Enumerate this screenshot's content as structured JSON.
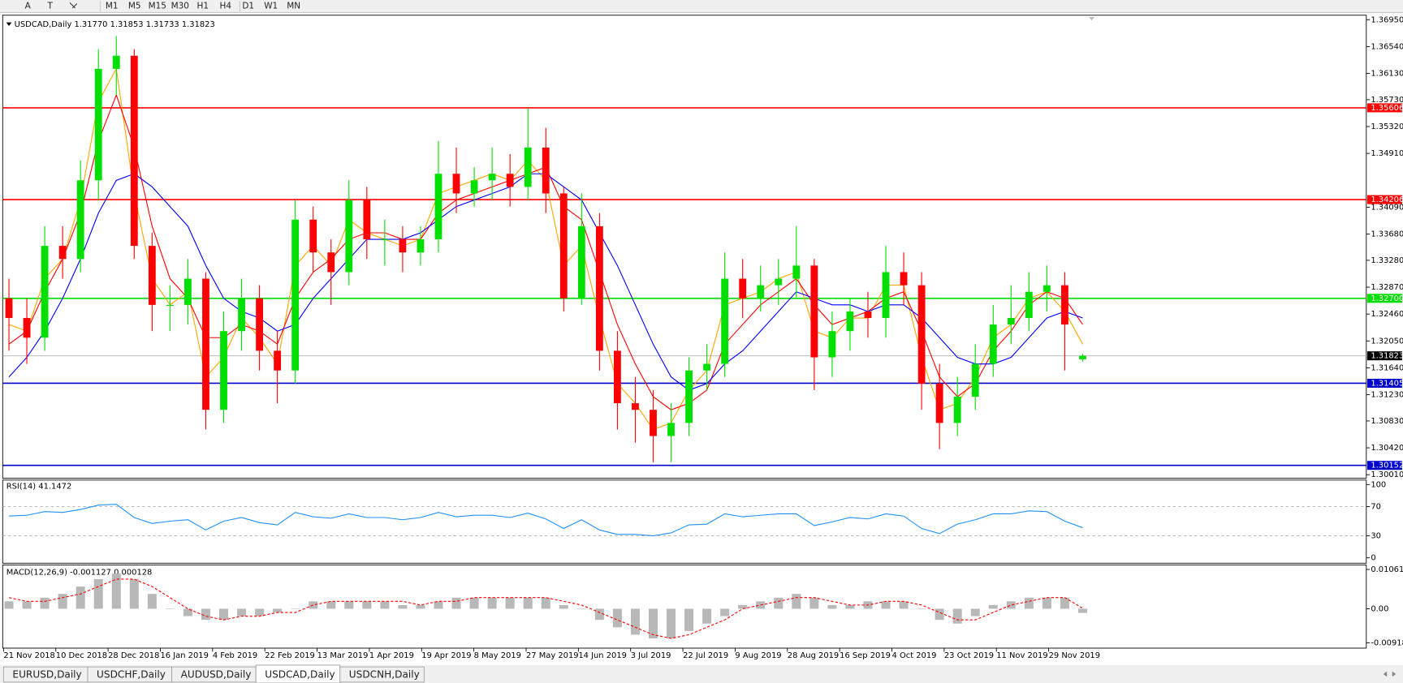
{
  "toolbar": {
    "tools": [
      "A",
      "T"
    ],
    "timeframes": [
      "M1",
      "M5",
      "M15",
      "M30",
      "H1",
      "H4",
      "D1",
      "W1",
      "MN"
    ]
  },
  "chart_data": {
    "type": "candlestick",
    "title": "USDCAD,Daily  1.31770 1.31853 1.31733 1.31823",
    "ylim": [
      1.3001,
      1.3695
    ],
    "yticks": [
      {
        "value": 1.3695,
        "label": "1.36950"
      },
      {
        "value": 1.3654,
        "label": "1.36540"
      },
      {
        "value": 1.3613,
        "label": "1.36130"
      },
      {
        "value": 1.3573,
        "label": "1.35730"
      },
      {
        "value": 1.3532,
        "label": "1.35320"
      },
      {
        "value": 1.3491,
        "label": "1.34910"
      },
      {
        "value": 1.3409,
        "label": "1.34090"
      },
      {
        "value": 1.3368,
        "label": "1.33680"
      },
      {
        "value": 1.3328,
        "label": "1.33280"
      },
      {
        "value": 1.3287,
        "label": "1.32870"
      },
      {
        "value": 1.3246,
        "label": "1.32460"
      },
      {
        "value": 1.3205,
        "label": "1.32050"
      },
      {
        "value": 1.3164,
        "label": "1.31640"
      },
      {
        "value": 1.3123,
        "label": "1.31230"
      },
      {
        "value": 1.3083,
        "label": "1.30830"
      },
      {
        "value": 1.3042,
        "label": "1.30420"
      },
      {
        "value": 1.3001,
        "label": "1.30010"
      }
    ],
    "levels": [
      {
        "value": 1.35606,
        "color": "#ff0000"
      },
      {
        "value": 1.34206,
        "color": "#ff0000"
      },
      {
        "value": 1.327,
        "label": "1.32700",
        "color": "#00e000"
      },
      {
        "value": 1.31405,
        "color": "#0000cc"
      },
      {
        "value": 1.30152,
        "color": "#0000cc"
      },
      {
        "value": 1.31823,
        "color": "#b0b0b0",
        "label_color": "#000000"
      }
    ],
    "up_color": "#00e000",
    "down_color": "#ff0000",
    "open": [
      1.327,
      1.324,
      1.321,
      1.335,
      1.333,
      1.345,
      1.362,
      1.364,
      1.335,
      1.326,
      1.326,
      1.33,
      1.31,
      1.322,
      1.327,
      1.319,
      1.316,
      1.339,
      1.334,
      1.331,
      1.342,
      1.336,
      1.336,
      1.334,
      1.336,
      1.346,
      1.343,
      1.345,
      1.346,
      1.344,
      1.35,
      1.343,
      1.327,
      1.338,
      1.319,
      1.311,
      1.31,
      1.306,
      1.308,
      1.316,
      1.317,
      1.33,
      1.327,
      1.329,
      1.33,
      1.332,
      1.318,
      1.322,
      1.325,
      1.324,
      1.331,
      1.329,
      1.314,
      1.308,
      1.312,
      1.317,
      1.323,
      1.324,
      1.328,
      1.329,
      1.3177
    ],
    "high": [
      1.33,
      1.327,
      1.338,
      1.338,
      1.348,
      1.365,
      1.367,
      1.365,
      1.337,
      1.329,
      1.333,
      1.331,
      1.325,
      1.33,
      1.329,
      1.322,
      1.342,
      1.341,
      1.336,
      1.345,
      1.344,
      1.339,
      1.338,
      1.338,
      1.351,
      1.35,
      1.347,
      1.35,
      1.349,
      1.356,
      1.353,
      1.344,
      1.343,
      1.34,
      1.322,
      1.315,
      1.313,
      1.311,
      1.318,
      1.32,
      1.334,
      1.333,
      1.332,
      1.333,
      1.338,
      1.333,
      1.325,
      1.327,
      1.328,
      1.335,
      1.334,
      1.331,
      1.317,
      1.315,
      1.32,
      1.326,
      1.329,
      1.331,
      1.332,
      1.331,
      1.31853
    ],
    "low": [
      1.319,
      1.317,
      1.319,
      1.33,
      1.331,
      1.342,
      1.358,
      1.333,
      1.322,
      1.322,
      1.323,
      1.307,
      1.308,
      1.319,
      1.316,
      1.311,
      1.314,
      1.331,
      1.326,
      1.329,
      1.333,
      1.332,
      1.331,
      1.332,
      1.334,
      1.34,
      1.341,
      1.342,
      1.341,
      1.342,
      1.34,
      1.325,
      1.326,
      1.316,
      1.307,
      1.305,
      1.302,
      1.302,
      1.306,
      1.313,
      1.315,
      1.324,
      1.325,
      1.326,
      1.327,
      1.313,
      1.315,
      1.319,
      1.321,
      1.321,
      1.326,
      1.31,
      1.304,
      1.306,
      1.31,
      1.315,
      1.32,
      1.322,
      1.325,
      1.316,
      1.31733
    ],
    "close": [
      1.324,
      1.321,
      1.335,
      1.333,
      1.345,
      1.362,
      1.364,
      1.335,
      1.326,
      1.326,
      1.33,
      1.31,
      1.322,
      1.327,
      1.319,
      1.316,
      1.339,
      1.334,
      1.331,
      1.342,
      1.336,
      1.336,
      1.334,
      1.336,
      1.346,
      1.343,
      1.345,
      1.346,
      1.344,
      1.35,
      1.343,
      1.327,
      1.338,
      1.319,
      1.311,
      1.31,
      1.306,
      1.308,
      1.316,
      1.317,
      1.33,
      1.327,
      1.329,
      1.33,
      1.332,
      1.318,
      1.322,
      1.325,
      1.324,
      1.331,
      1.329,
      1.314,
      1.308,
      1.312,
      1.317,
      1.323,
      1.324,
      1.328,
      1.329,
      1.323,
      1.31823
    ],
    "moving_averages": [
      {
        "color": "#ffa500",
        "values": [
          1.323,
          1.322,
          1.33,
          1.333,
          1.342,
          1.357,
          1.362,
          1.343,
          1.33,
          1.326,
          1.328,
          1.315,
          1.318,
          1.324,
          1.321,
          1.317,
          1.332,
          1.335,
          1.332,
          1.339,
          1.337,
          1.336,
          1.335,
          1.336,
          1.343,
          1.344,
          1.345,
          1.346,
          1.345,
          1.348,
          1.345,
          1.332,
          1.335,
          1.324,
          1.314,
          1.311,
          1.307,
          1.308,
          1.313,
          1.316,
          1.326,
          1.327,
          1.328,
          1.33,
          1.331,
          1.322,
          1.321,
          1.324,
          1.324,
          1.329,
          1.329,
          1.318,
          1.31,
          1.311,
          1.315,
          1.321,
          1.323,
          1.327,
          1.328,
          1.325,
          1.32
        ]
      },
      {
        "color": "#ff0000",
        "values": [
          1.32,
          1.322,
          1.328,
          1.333,
          1.34,
          1.351,
          1.358,
          1.35,
          1.338,
          1.33,
          1.327,
          1.321,
          1.321,
          1.323,
          1.322,
          1.32,
          1.327,
          1.331,
          1.333,
          1.336,
          1.337,
          1.337,
          1.336,
          1.336,
          1.34,
          1.342,
          1.343,
          1.344,
          1.345,
          1.346,
          1.347,
          1.341,
          1.339,
          1.331,
          1.323,
          1.317,
          1.312,
          1.31,
          1.311,
          1.313,
          1.32,
          1.323,
          1.326,
          1.328,
          1.33,
          1.326,
          1.323,
          1.324,
          1.325,
          1.327,
          1.328,
          1.322,
          1.315,
          1.312,
          1.314,
          1.319,
          1.322,
          1.326,
          1.328,
          1.327,
          1.323
        ]
      },
      {
        "color": "#0000ff",
        "values": [
          1.315,
          1.318,
          1.322,
          1.327,
          1.333,
          1.34,
          1.345,
          1.346,
          1.344,
          1.341,
          1.338,
          1.332,
          1.327,
          1.325,
          1.324,
          1.322,
          1.323,
          1.327,
          1.33,
          1.333,
          1.336,
          1.336,
          1.336,
          1.337,
          1.339,
          1.341,
          1.342,
          1.343,
          1.344,
          1.346,
          1.346,
          1.344,
          1.342,
          1.337,
          1.332,
          1.326,
          1.32,
          1.315,
          1.313,
          1.314,
          1.317,
          1.319,
          1.322,
          1.325,
          1.328,
          1.327,
          1.326,
          1.326,
          1.325,
          1.326,
          1.326,
          1.324,
          1.321,
          1.318,
          1.317,
          1.317,
          1.318,
          1.321,
          1.324,
          1.325,
          1.324
        ]
      }
    ],
    "x_labels": [
      "21 Nov 2018",
      "10 Dec 2018",
      "28 Dec 2018",
      "16 Jan 2019",
      "4 Feb 2019",
      "22 Feb 2019",
      "13 Mar 2019",
      "1 Apr 2019",
      "19 Apr 2019",
      "8 May 2019",
      "27 May 2019",
      "14 Jun 2019",
      "3 Jul 2019",
      "22 Jul 2019",
      "9 Aug 2019",
      "28 Aug 2019",
      "16 Sep 2019",
      "4 Oct 2019",
      "23 Oct 2019",
      "11 Nov 2019",
      "29 Nov 2019"
    ],
    "rsi": {
      "title": "RSI(14) 41.1472",
      "color": "#1e90ff",
      "ylim": [
        0,
        100
      ],
      "yticks": [
        100,
        70,
        30,
        0
      ],
      "levels": [
        70,
        30
      ],
      "values": [
        57,
        58,
        63,
        62,
        66,
        72,
        73,
        55,
        47,
        50,
        52,
        38,
        50,
        55,
        48,
        45,
        62,
        56,
        54,
        60,
        55,
        55,
        52,
        55,
        62,
        56,
        58,
        58,
        55,
        61,
        53,
        40,
        52,
        38,
        32,
        32,
        30,
        34,
        45,
        46,
        60,
        56,
        58,
        60,
        60,
        44,
        49,
        55,
        53,
        60,
        57,
        40,
        33,
        46,
        52,
        60,
        60,
        64,
        63,
        50,
        41.1472
      ]
    },
    "macd": {
      "title": "MACD(12,26,9) -0.001127 0.000128",
      "histogram_color": "#b8b8b8",
      "signal_color": "#ff0000",
      "ylim": [
        -0.009181,
        0.010615
      ],
      "yticks": [
        0.010615,
        {
          "value": 0,
          "label": "0.00"
        },
        -0.009181
      ],
      "values": [
        0.002,
        0.002,
        0.003,
        0.004,
        0.006,
        0.008,
        0.0095,
        0.008,
        0.004,
        0.0,
        -0.002,
        -0.003,
        -0.003,
        -0.002,
        -0.002,
        -0.001,
        0.0,
        0.002,
        0.002,
        0.002,
        0.002,
        0.002,
        0.001,
        0.001,
        0.002,
        0.003,
        0.003,
        0.003,
        0.003,
        0.003,
        0.003,
        0.001,
        0.0,
        -0.003,
        -0.005,
        -0.007,
        -0.008,
        -0.008,
        -0.006,
        -0.004,
        -0.002,
        0.001,
        0.002,
        0.003,
        0.004,
        0.003,
        0.001,
        0.001,
        0.002,
        0.002,
        0.002,
        0.0,
        -0.003,
        -0.004,
        -0.002,
        0.001,
        0.002,
        0.003,
        0.003,
        0.003,
        -0.001127
      ],
      "signal": [
        0.003,
        0.002,
        0.002,
        0.003,
        0.004,
        0.006,
        0.008,
        0.008,
        0.006,
        0.003,
        0.0,
        -0.002,
        -0.003,
        -0.002,
        -0.002,
        -0.001,
        -0.001,
        0.001,
        0.002,
        0.002,
        0.002,
        0.002,
        0.002,
        0.001,
        0.002,
        0.002,
        0.003,
        0.003,
        0.003,
        0.003,
        0.003,
        0.002,
        0.001,
        -0.001,
        -0.003,
        -0.005,
        -0.007,
        -0.008,
        -0.007,
        -0.005,
        -0.003,
        0.0,
        0.001,
        0.002,
        0.003,
        0.003,
        0.002,
        0.001,
        0.001,
        0.002,
        0.002,
        0.001,
        -0.001,
        -0.003,
        -0.003,
        -0.001,
        0.001,
        0.002,
        0.003,
        0.003,
        0.000128
      ]
    }
  },
  "tabs": [
    {
      "label": "EURUSD,Daily",
      "active": false
    },
    {
      "label": "USDCHF,Daily",
      "active": false
    },
    {
      "label": "AUDUSD,Daily",
      "active": false
    },
    {
      "label": "USDCAD,Daily",
      "active": true
    },
    {
      "label": "USDCNH,Daily",
      "active": false
    }
  ]
}
